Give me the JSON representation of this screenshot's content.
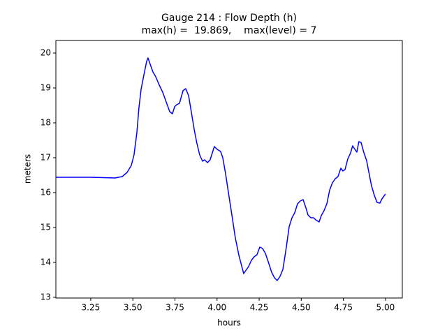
{
  "chart_data": {
    "type": "line",
    "title": "Gauge 214 : Flow Depth (h)",
    "subtitle": "max(h) =  19.869,    max(level) = 7",
    "x_label": "hours",
    "y_label": "meters",
    "xlim": [
      3.043,
      5.1
    ],
    "ylim": [
      12.98,
      20.36
    ],
    "xticks": [
      3.25,
      {
        "value": 3.5,
        "label": "3.50"
      },
      3.75,
      {
        "value": 4,
        "label": "4.00"
      },
      4.25,
      {
        "value": 4.5,
        "label": "4.50"
      },
      4.75,
      {
        "value": 5,
        "label": "5.00"
      }
    ],
    "yticks": [
      13,
      14,
      15,
      16,
      17,
      18,
      19,
      20
    ],
    "grid": false,
    "series": [
      {
        "color": "#0000ff",
        "x": [
          3.043,
          3.25,
          3.395,
          3.437,
          3.466,
          3.491,
          3.507,
          3.524,
          3.536,
          3.549,
          3.565,
          3.582,
          3.59,
          3.603,
          3.619,
          3.636,
          3.657,
          3.677,
          3.698,
          3.719,
          3.735,
          3.748,
          3.76,
          3.777,
          3.798,
          3.814,
          3.831,
          3.847,
          3.864,
          3.88,
          3.897,
          3.914,
          3.926,
          3.943,
          3.959,
          3.972,
          3.984,
          4.001,
          4.021,
          4.034,
          4.05,
          4.067,
          4.088,
          4.108,
          4.129,
          4.158,
          4.187,
          4.204,
          4.22,
          4.237,
          4.254,
          4.27,
          4.287,
          4.304,
          4.324,
          4.341,
          4.357,
          4.374,
          4.391,
          4.411,
          4.428,
          4.445,
          4.461,
          4.478,
          4.494,
          4.511,
          4.528,
          4.54,
          4.557,
          4.573,
          4.586,
          4.606,
          4.619,
          4.635,
          4.652,
          4.669,
          4.685,
          4.702,
          4.718,
          4.735,
          4.747,
          4.76,
          4.776,
          4.793,
          4.805,
          4.813,
          4.83,
          4.842,
          4.855,
          4.871,
          4.888,
          4.904,
          4.917,
          4.934,
          4.95,
          4.967,
          4.979,
          5.0
        ],
        "values": [
          16.44,
          16.44,
          16.42,
          16.46,
          16.58,
          16.78,
          17.08,
          17.72,
          18.42,
          18.96,
          19.36,
          19.76,
          19.86,
          19.68,
          19.46,
          19.32,
          19.08,
          18.88,
          18.6,
          18.32,
          18.26,
          18.46,
          18.52,
          18.56,
          18.92,
          18.98,
          18.78,
          18.32,
          17.82,
          17.42,
          17.08,
          16.9,
          16.94,
          16.86,
          16.94,
          17.14,
          17.32,
          17.24,
          17.18,
          17.0,
          16.56,
          16.02,
          15.36,
          14.72,
          14.22,
          13.68,
          13.88,
          14.06,
          14.16,
          14.22,
          14.44,
          14.4,
          14.26,
          14.02,
          13.72,
          13.56,
          13.48,
          13.6,
          13.8,
          14.42,
          15.02,
          15.28,
          15.42,
          15.68,
          15.76,
          15.8,
          15.56,
          15.36,
          15.28,
          15.28,
          15.22,
          15.16,
          15.34,
          15.48,
          15.68,
          16.08,
          16.28,
          16.4,
          16.46,
          16.7,
          16.62,
          16.66,
          16.96,
          17.14,
          17.34,
          17.28,
          17.16,
          17.46,
          17.44,
          17.16,
          16.92,
          16.52,
          16.2,
          15.92,
          15.72,
          15.7,
          15.82,
          15.96
        ]
      }
    ]
  }
}
